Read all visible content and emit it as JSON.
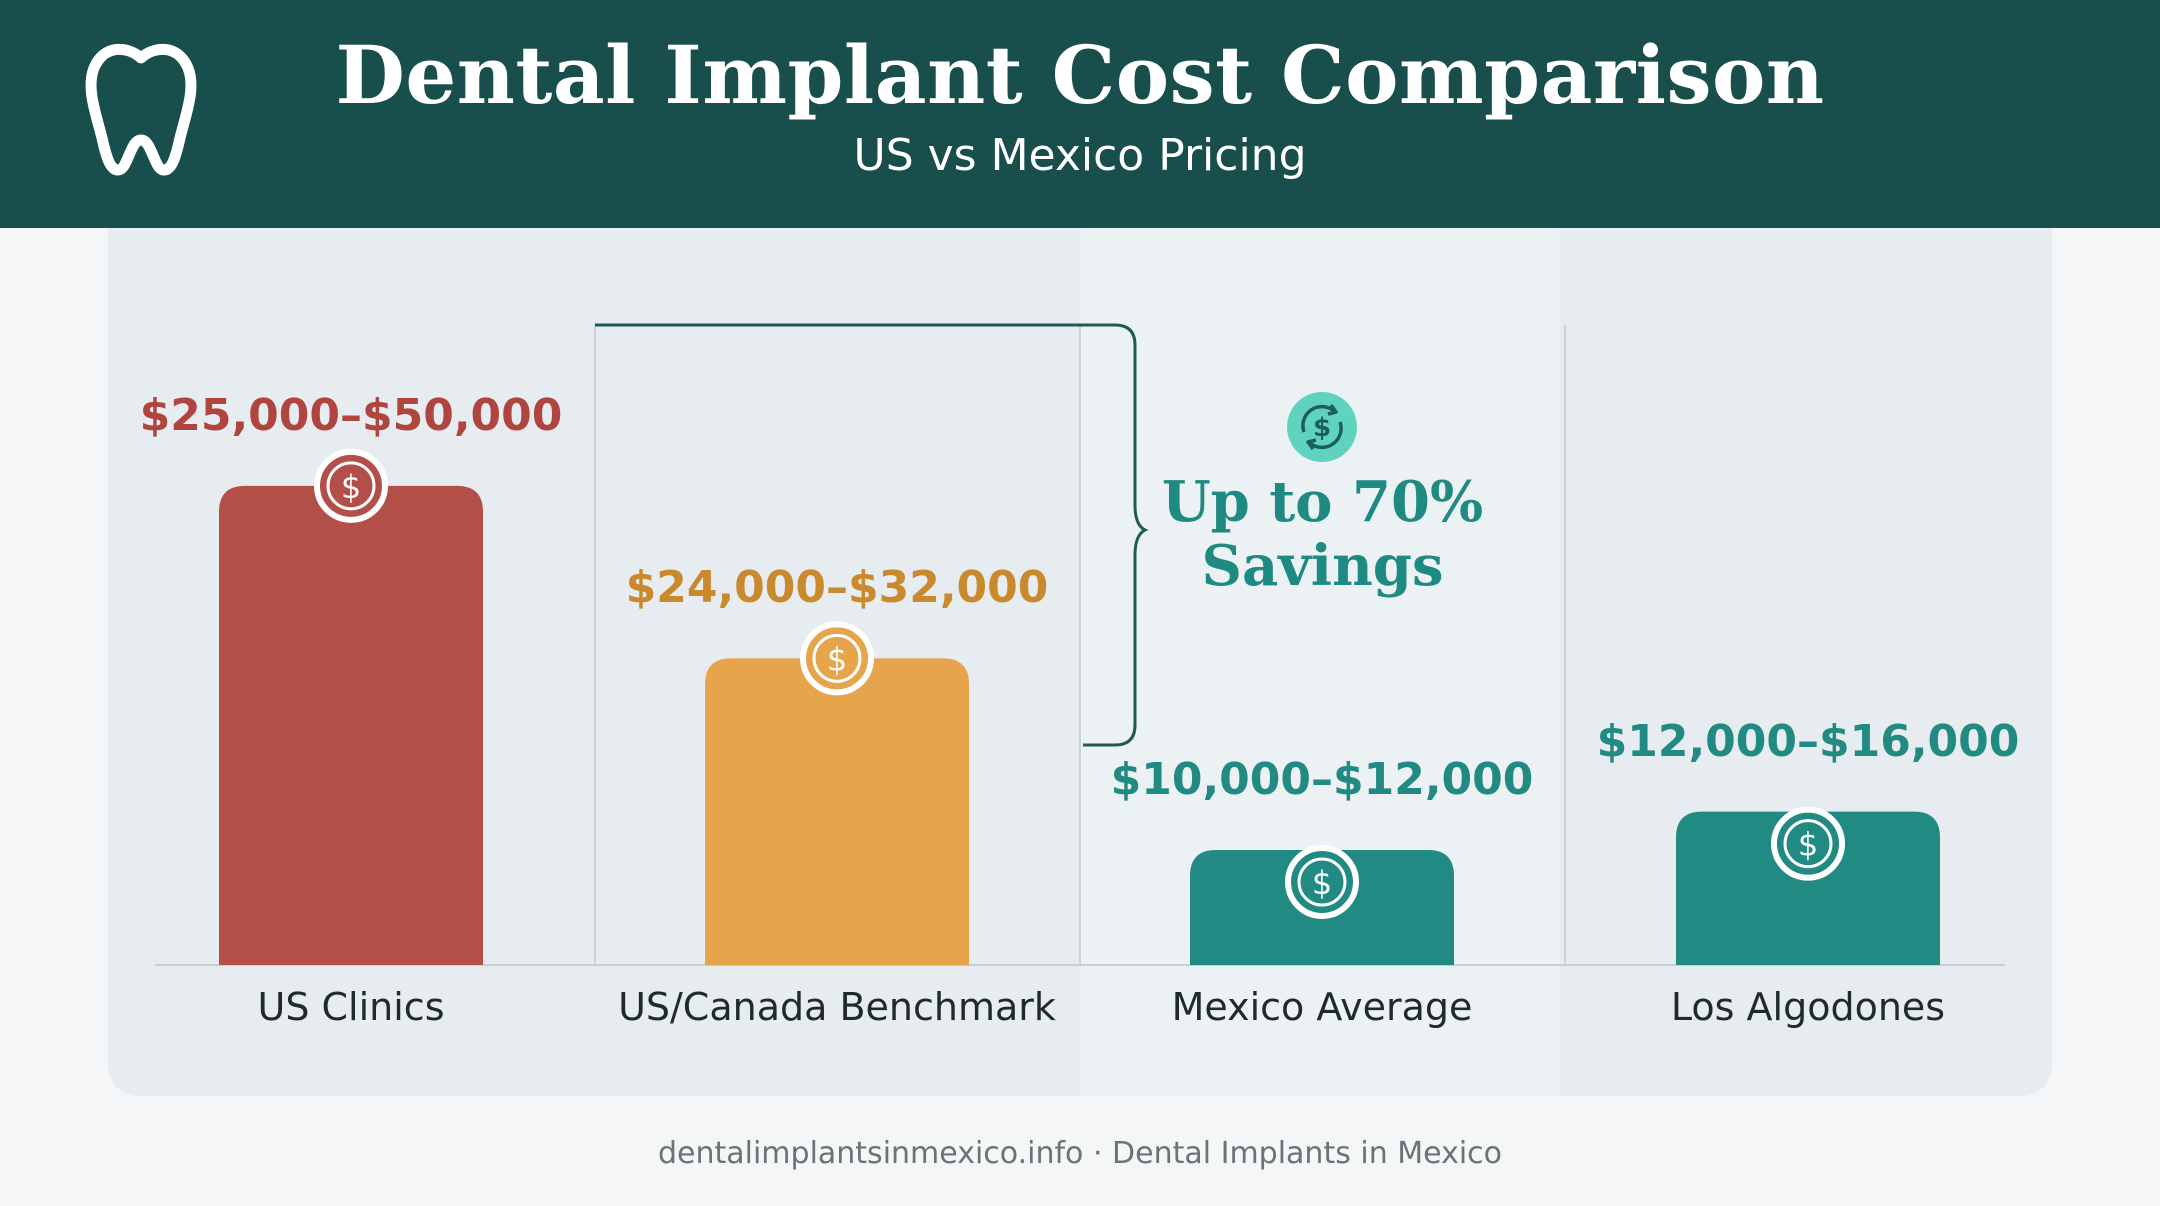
{
  "header": {
    "title": "Dental Implant Cost Comparison",
    "subtitle": "US vs Mexico Pricing",
    "logo_icon": "tooth-icon"
  },
  "chart_data": {
    "type": "bar",
    "title": "Dental Implant Cost Comparison",
    "subtitle": "US vs Mexico Pricing",
    "categories": [
      "US Clinics",
      "US/Canada Benchmark",
      "Mexico Average",
      "Los Algodones"
    ],
    "range_labels": [
      "$25,000–$50,000",
      "$24,000–$32,000",
      "$10,000–$12,000",
      "$12,000–$16,000"
    ],
    "ranges": [
      [
        25000,
        50000
      ],
      [
        24000,
        32000
      ],
      [
        10000,
        12000
      ],
      [
        12000,
        16000
      ]
    ],
    "values": [
      50000,
      32000,
      12000,
      16000
    ],
    "ylim": [
      0,
      60000
    ],
    "bar_icon": "dollar-icon",
    "annotation": {
      "text_line1": "Up to 70%",
      "text_line2": "Savings",
      "icon": "dollar-cycle-icon"
    }
  },
  "colors": {
    "header_bg": "#184f4c",
    "us_clinics": "#b44e49",
    "benchmark": "#e6a44b",
    "mexico": "#218a82",
    "savings_text": "#1e8a81"
  },
  "footer": {
    "text": "dentalimplantsinmexico.info · Dental Implants in Mexico"
  }
}
